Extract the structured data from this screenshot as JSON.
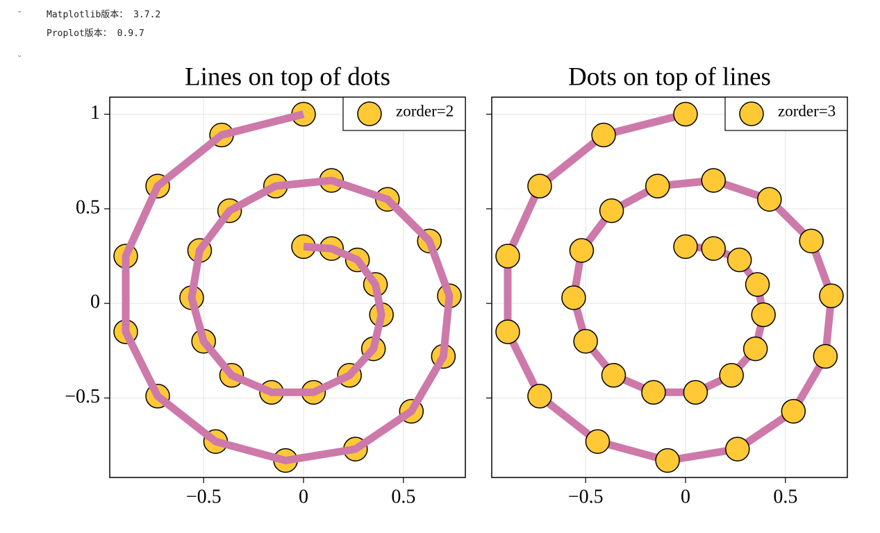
{
  "output": {
    "lines": [
      "Matplotlib版本： 3.7.2",
      "Proplot版本： 0.9.7"
    ]
  },
  "chart_data": [
    {
      "type": "line_scatter",
      "title": "Lines on top of dots",
      "line_on_top": true,
      "x": [
        0,
        0.14,
        0.27,
        0.36,
        0.39,
        0.35,
        0.23,
        0.05,
        -0.16,
        -0.36,
        -0.5,
        -0.56,
        -0.52,
        -0.37,
        -0.14,
        0.14,
        0.42,
        0.63,
        0.73,
        0.7,
        0.54,
        0.26,
        -0.09,
        -0.44,
        -0.73,
        -0.89,
        -0.89,
        -0.73,
        -0.41,
        0
      ],
      "y": [
        0.3,
        0.29,
        0.23,
        0.1,
        -0.06,
        -0.24,
        -0.38,
        -0.47,
        -0.47,
        -0.38,
        -0.2,
        0.03,
        0.28,
        0.49,
        0.62,
        0.65,
        0.55,
        0.33,
        0.04,
        -0.28,
        -0.57,
        -0.77,
        -0.83,
        -0.73,
        -0.49,
        -0.15,
        0.25,
        0.62,
        0.89,
        1
      ],
      "line_color": "#cd79a9",
      "dot_color": "#ffc935",
      "legend_name": "zorder=2",
      "legend_loc": "upper right",
      "xlim": [
        -0.97,
        0.81
      ],
      "ylim": [
        -0.92,
        1.09
      ],
      "grid": true,
      "xticks": [
        {
          "value": -0.5,
          "label": "−0.5"
        },
        0,
        0.5
      ],
      "yticks": [
        {
          "value": -0.5,
          "label": "−0.5"
        },
        0,
        0.5,
        1
      ]
    },
    {
      "type": "line_scatter",
      "title": "Dots on top of lines",
      "line_on_top": false,
      "x": [
        0,
        0.14,
        0.27,
        0.36,
        0.39,
        0.35,
        0.23,
        0.05,
        -0.16,
        -0.36,
        -0.5,
        -0.56,
        -0.52,
        -0.37,
        -0.14,
        0.14,
        0.42,
        0.63,
        0.73,
        0.7,
        0.54,
        0.26,
        -0.09,
        -0.44,
        -0.73,
        -0.89,
        -0.89,
        -0.73,
        -0.41,
        0
      ],
      "y": [
        0.3,
        0.29,
        0.23,
        0.1,
        -0.06,
        -0.24,
        -0.38,
        -0.47,
        -0.47,
        -0.38,
        -0.2,
        0.03,
        0.28,
        0.49,
        0.62,
        0.65,
        0.55,
        0.33,
        0.04,
        -0.28,
        -0.57,
        -0.77,
        -0.83,
        -0.73,
        -0.49,
        -0.15,
        0.25,
        0.62,
        0.89,
        1
      ],
      "line_color": "#cd79a9",
      "dot_color": "#ffc935",
      "legend_name": "zorder=3",
      "legend_loc": "upper right",
      "xlim": [
        -0.97,
        0.81
      ],
      "ylim": [
        -0.92,
        1.09
      ],
      "grid": true,
      "xticks": [
        {
          "value": -0.5,
          "label": "−0.5"
        },
        0,
        0.5
      ],
      "yticks": [
        {
          "value": -0.5,
          "label": "−0.5"
        },
        0,
        0.5,
        1
      ]
    }
  ]
}
